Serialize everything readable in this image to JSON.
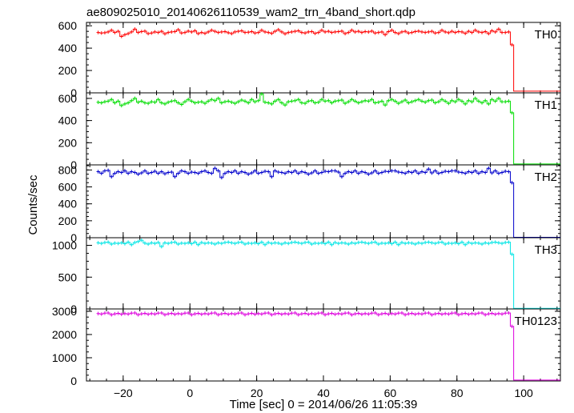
{
  "chart_data": {
    "type": "line",
    "title": "ae809025010_20140626110539_wam2_trn_4band_short.qdp",
    "xlabel": "Time [sec] 0 = 2014/06/26 11:05:39",
    "ylabel": "Counts/sec",
    "xlim": [
      -31,
      111
    ],
    "x_ticks": [
      -20,
      0,
      20,
      40,
      60,
      80,
      100
    ],
    "x_tick_labels": [
      "−20",
      "0",
      "20",
      "40",
      "60",
      "80",
      "100"
    ],
    "x_start": -27.5,
    "x_step": 1.0,
    "grid": false,
    "panels": [
      {
        "name": "TH0",
        "color": "#ff0000",
        "ylim": [
          0,
          630
        ],
        "y_ticks": [
          0,
          200,
          400,
          600
        ],
        "y_tick_labels": [
          "0",
          "200",
          "400",
          "600"
        ],
        "values": [
          540,
          535,
          538,
          545,
          560,
          540,
          550,
          505,
          520,
          530,
          545,
          570,
          540,
          548,
          552,
          530,
          535,
          545,
          540,
          550,
          528,
          540,
          545,
          548,
          565,
          535,
          540,
          552,
          545,
          555,
          530,
          540,
          532,
          545,
          560,
          550,
          540,
          545,
          548,
          538,
          530,
          545,
          550,
          555,
          540,
          542,
          548,
          535,
          540,
          560,
          545,
          540,
          532,
          550,
          565,
          545,
          528,
          540,
          545,
          550,
          555,
          540,
          535,
          545,
          548,
          532,
          540,
          560,
          545,
          550,
          540,
          545,
          548,
          552,
          530,
          540,
          560,
          545,
          550,
          540,
          548,
          545,
          552,
          535,
          540,
          545,
          520,
          548,
          560,
          540,
          530,
          545,
          550,
          535,
          540,
          548,
          552,
          545,
          540,
          545,
          550,
          535,
          540,
          560,
          545,
          538,
          550,
          540,
          548,
          545,
          532,
          550,
          540,
          560,
          545,
          540,
          548,
          530,
          555,
          545,
          570,
          540,
          540,
          545,
          430,
          15,
          15,
          15,
          15,
          15,
          15,
          15,
          15,
          15,
          15,
          15,
          15,
          15,
          15
        ]
      },
      {
        "name": "TH1",
        "color": "#00dd00",
        "ylim": [
          0,
          650
        ],
        "y_ticks": [
          0,
          200,
          400,
          600
        ],
        "y_tick_labels": [
          "0",
          "200",
          "400",
          "600"
        ],
        "values": [
          565,
          560,
          570,
          575,
          590,
          560,
          575,
          535,
          550,
          560,
          580,
          600,
          565,
          575,
          560,
          555,
          570,
          565,
          590,
          560,
          550,
          565,
          575,
          580,
          560,
          545,
          570,
          590,
          575,
          560,
          565,
          570,
          555,
          575,
          590,
          580,
          600,
          560,
          570,
          575,
          565,
          555,
          570,
          585,
          575,
          560,
          590,
          570,
          580,
          640,
          565,
          560,
          550,
          575,
          590,
          560,
          540,
          570,
          575,
          580,
          590,
          560,
          555,
          575,
          580,
          560,
          565,
          590,
          575,
          580,
          560,
          575,
          580,
          585,
          555,
          570,
          590,
          575,
          560,
          570,
          580,
          575,
          590,
          560,
          565,
          575,
          540,
          580,
          590,
          575,
          555,
          570,
          585,
          560,
          570,
          580,
          590,
          575,
          565,
          580,
          585,
          560,
          570,
          590,
          575,
          555,
          580,
          570,
          590,
          575,
          550,
          580,
          570,
          600,
          575,
          560,
          580,
          550,
          590,
          575,
          600,
          570,
          570,
          575,
          470,
          8,
          8,
          8,
          8,
          8,
          8,
          8,
          8,
          8,
          8,
          8,
          8,
          8,
          8
        ]
      },
      {
        "name": "TH2",
        "color": "#0000cc",
        "ylim": [
          0,
          860
        ],
        "y_ticks": [
          0,
          200,
          400,
          600,
          800
        ],
        "y_tick_labels": [
          "0",
          "200",
          "400",
          "600",
          "800"
        ],
        "values": [
          780,
          760,
          790,
          795,
          720,
          760,
          780,
          770,
          790,
          760,
          780,
          770,
          750,
          765,
          790,
          760,
          770,
          785,
          760,
          780,
          755,
          770,
          775,
          720,
          760,
          790,
          780,
          760,
          775,
          770,
          760,
          780,
          790,
          770,
          760,
          820,
          790,
          710,
          760,
          780,
          770,
          790,
          760,
          780,
          770,
          750,
          765,
          790,
          760,
          770,
          785,
          780,
          720,
          790,
          775,
          770,
          760,
          780,
          770,
          790,
          760,
          780,
          770,
          750,
          765,
          790,
          760,
          770,
          785,
          780,
          790,
          790,
          775,
          720,
          760,
          780,
          770,
          790,
          760,
          780,
          770,
          750,
          765,
          790,
          760,
          770,
          785,
          780,
          790,
          790,
          775,
          770,
          760,
          780,
          770,
          790,
          760,
          780,
          770,
          810,
          765,
          790,
          760,
          770,
          785,
          780,
          790,
          790,
          775,
          770,
          760,
          780,
          770,
          790,
          760,
          780,
          770,
          820,
          765,
          790,
          760,
          770,
          785,
          780,
          650,
          5,
          5,
          5,
          5,
          5,
          5,
          5,
          5,
          5,
          5,
          5,
          5,
          5,
          5
        ]
      },
      {
        "name": "TH3",
        "color": "#00e5e5",
        "ylim": [
          0,
          1120
        ],
        "y_ticks": [
          0,
          500,
          1000
        ],
        "y_tick_labels": [
          "0",
          "500",
          "1000"
        ],
        "values": [
          1040,
          1030,
          1045,
          1050,
          1020,
          1035,
          1030,
          1040,
          1025,
          1050,
          1010,
          1045,
          1060,
          1080,
          1035,
          1020,
          1040,
          1030,
          1045,
          980,
          1040,
          1030,
          1045,
          1050,
          1020,
          1035,
          1030,
          1040,
          1025,
          1050,
          1010,
          1045,
          1030,
          1040,
          1035,
          1020,
          1040,
          1030,
          1045,
          1050,
          1040,
          1030,
          1045,
          1050,
          1020,
          1035,
          1030,
          1040,
          1025,
          1050,
          1010,
          1045,
          1030,
          1040,
          1035,
          1020,
          1040,
          1030,
          1045,
          1050,
          1040,
          1030,
          1045,
          1050,
          1020,
          1035,
          1030,
          1040,
          1025,
          1050,
          1010,
          1045,
          1030,
          1040,
          1035,
          1020,
          1040,
          1030,
          1045,
          1050,
          1040,
          1030,
          1045,
          1050,
          1020,
          1035,
          1030,
          1040,
          1025,
          1050,
          1010,
          1045,
          1030,
          1040,
          1035,
          1020,
          1040,
          1030,
          1045,
          1050,
          1040,
          1030,
          1045,
          1050,
          1020,
          1035,
          1030,
          1040,
          1025,
          1050,
          1010,
          1045,
          1030,
          1040,
          1035,
          1020,
          1040,
          1030,
          1045,
          1050,
          1040,
          1030,
          1045,
          1050,
          860,
          10,
          10,
          10,
          10,
          10,
          10,
          10,
          10,
          10,
          10,
          10,
          10,
          10,
          10
        ]
      },
      {
        "name": "TH0123",
        "color": "#dd00dd",
        "ylim": [
          0,
          3100
        ],
        "y_ticks": [
          0,
          1000,
          2000,
          3000
        ],
        "y_tick_labels": [
          "0",
          "1000",
          "2000",
          "3000"
        ],
        "values": [
          2900,
          2880,
          2920,
          2930,
          2850,
          2890,
          2910,
          2870,
          2900,
          2880,
          2920,
          2930,
          2850,
          2890,
          2910,
          2870,
          2900,
          2880,
          2920,
          2930,
          2850,
          2890,
          2910,
          2870,
          2900,
          2880,
          2920,
          2930,
          2850,
          2890,
          2910,
          2870,
          2900,
          2880,
          2920,
          2930,
          2850,
          2890,
          2910,
          2870,
          2900,
          2880,
          2920,
          2930,
          2850,
          2890,
          2910,
          2870,
          2900,
          2880,
          2920,
          2930,
          2850,
          2890,
          2910,
          2870,
          2900,
          2880,
          2920,
          2930,
          2850,
          2890,
          2910,
          2870,
          2900,
          2880,
          2920,
          2930,
          2850,
          2890,
          2910,
          2870,
          2900,
          2880,
          2920,
          2930,
          2850,
          2890,
          2910,
          2870,
          2900,
          2880,
          2920,
          2930,
          2850,
          2890,
          2910,
          2870,
          2900,
          2880,
          2920,
          2930,
          2850,
          2890,
          2910,
          2870,
          2900,
          2880,
          2920,
          2930,
          2850,
          2890,
          2910,
          2870,
          2900,
          2880,
          2920,
          2930,
          2850,
          2890,
          2910,
          2870,
          2900,
          2880,
          2920,
          2930,
          2850,
          2890,
          2910,
          2870,
          2900,
          2880,
          2920,
          2930,
          2350,
          40,
          40,
          40,
          40,
          40,
          40,
          40,
          40,
          40,
          40,
          40,
          40,
          40,
          40
        ]
      }
    ]
  }
}
